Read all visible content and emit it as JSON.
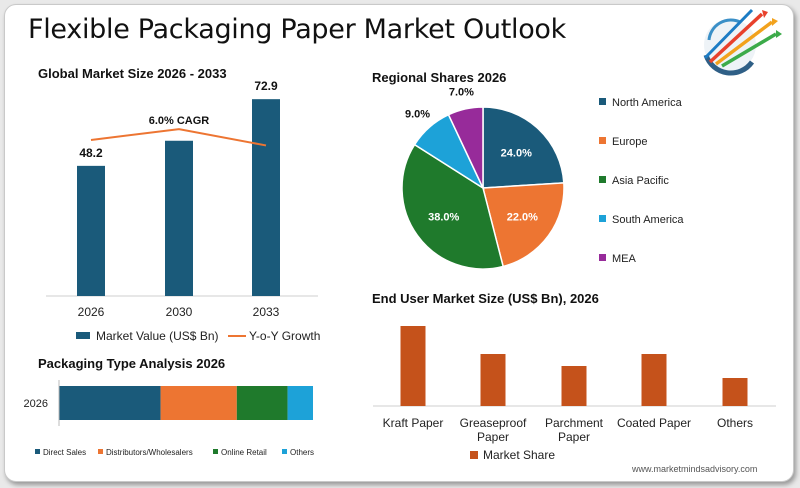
{
  "title": "Flexible Packaging Paper Market Outlook",
  "website": "www.marketmindsadvisory.com",
  "colors": {
    "teal": "#1a5a7a",
    "orange": "#ed7532",
    "green": "#1f7a2c",
    "sky": "#1da2d8",
    "purple": "#972b9a",
    "rust": "#c5521b"
  },
  "chart_data": [
    {
      "type": "bar",
      "title": "Global Market Size 2026 - 2033",
      "categories": [
        "2026",
        "2030",
        "2033"
      ],
      "series": [
        {
          "name": "Market Value (US$ Bn)",
          "values": [
            48.2,
            57.5,
            72.9
          ]
        },
        {
          "name": "Y-o-Y Growth",
          "type": "line",
          "values": [
            1.0,
            1.16,
            0.92
          ]
        }
      ],
      "value_labels": [
        "48.2",
        "",
        "72.9"
      ],
      "annotation": "6.0% CAGR",
      "ylim": [
        0,
        80
      ]
    },
    {
      "type": "pie",
      "title": "Regional Shares 2026",
      "labels": [
        "North America",
        "Europe",
        "Asia Pacific",
        "South America",
        "MEA"
      ],
      "values": [
        24.0,
        22.0,
        38.0,
        9.0,
        7.0
      ],
      "value_labels": [
        "24.0%",
        "22.0%",
        "38.0%",
        "9.0%",
        "7.0%"
      ],
      "legend": "right"
    },
    {
      "type": "bar",
      "orientation": "horizontal-stacked",
      "title": "Packaging Type Analysis 2026",
      "categories": [
        "2026"
      ],
      "series": [
        {
          "name": "Direct Sales",
          "values": [
            40
          ]
        },
        {
          "name": "Distributors/Wholesalers",
          "values": [
            30
          ]
        },
        {
          "name": "Online Retail",
          "values": [
            20
          ]
        },
        {
          "name": "Others",
          "values": [
            10
          ]
        }
      ],
      "legend": "bottom"
    },
    {
      "type": "bar",
      "title": "End User Market Size (US$ Bn), 2026",
      "categories": [
        "Kraft Paper",
        "Greaseproof Paper",
        "Parchment Paper",
        "Coated Paper",
        "Others"
      ],
      "category_lines": [
        [
          "Kraft Paper"
        ],
        [
          "Greaseproof",
          "Paper"
        ],
        [
          "Parchment",
          "Paper"
        ],
        [
          "Coated Paper"
        ],
        [
          "Others"
        ]
      ],
      "series": [
        {
          "name": "Market Share",
          "values": [
            40,
            26,
            20,
            26,
            14
          ]
        }
      ],
      "legend": "bottom"
    }
  ]
}
